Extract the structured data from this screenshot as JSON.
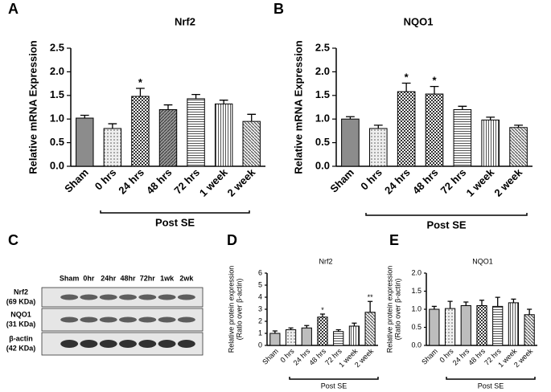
{
  "chart_data": [
    {
      "type": "bar",
      "panel_label": "A",
      "title": "Nrf2",
      "y_label": [
        "Relative mRNA Expression"
      ],
      "categories": [
        "Sham",
        "0 hrs",
        "24 hrs",
        "48 hrs",
        "72 hrs",
        "1 week",
        "2 week"
      ],
      "values": [
        1.02,
        0.8,
        1.48,
        1.2,
        1.43,
        1.32,
        0.95
      ],
      "errors": [
        0.06,
        0.1,
        0.17,
        0.1,
        0.09,
        0.08,
        0.15
      ],
      "significance": [
        null,
        null,
        "*",
        null,
        null,
        null,
        null
      ],
      "group_label": "Post SE",
      "color": "#8c8c8c",
      "patterns": [
        "solid",
        "dots",
        "grid",
        "diag",
        "hlines",
        "vlines",
        "diag2"
      ],
      "ylim": [
        0,
        2.5
      ],
      "yticks": [
        {
          "value": 0,
          "label": "0.0"
        },
        0.5,
        {
          "value": 1,
          "label": "1.0"
        },
        1.5,
        {
          "value": 2,
          "label": "2.0"
        },
        2.5
      ]
    },
    {
      "type": "bar",
      "panel_label": "B",
      "title": "NQO1",
      "y_label": [
        "Relative mRNA Expression"
      ],
      "categories": [
        "Sham",
        "0 hrs",
        "24 hrs",
        "48 hrs",
        "72 hrs",
        "1 week",
        "2 week"
      ],
      "values": [
        1.0,
        0.8,
        1.58,
        1.53,
        1.2,
        0.98,
        0.82
      ],
      "errors": [
        0.05,
        0.07,
        0.18,
        0.16,
        0.07,
        0.06,
        0.05
      ],
      "significance": [
        null,
        null,
        "*",
        "*",
        null,
        null,
        null
      ],
      "group_label": "Post SE",
      "color": "#8c8c8c",
      "patterns": [
        "solid",
        "dots",
        "grid",
        "grid",
        "hlines",
        "vlines",
        "diag2"
      ],
      "ylim": [
        0,
        2.5
      ],
      "yticks": [
        {
          "value": 0,
          "label": "0.0"
        },
        0.5,
        {
          "value": 1,
          "label": "1.0"
        },
        1.5,
        {
          "value": 2,
          "label": "2.0"
        },
        2.5
      ]
    },
    {
      "type": "bar",
      "panel_label": "D",
      "title": "Nrf2",
      "y_label": [
        "Relative protein expression",
        "(Ratio over β-actin)"
      ],
      "categories": [
        "Sham",
        "0 hrs",
        "24 hrs",
        "48 hrs",
        "72 hrs",
        "1 week",
        "2 week"
      ],
      "values": [
        1.0,
        1.3,
        1.45,
        2.35,
        1.15,
        1.6,
        2.75
      ],
      "errors": [
        0.2,
        0.15,
        0.2,
        0.25,
        0.15,
        0.25,
        0.9
      ],
      "significance": [
        null,
        null,
        null,
        "*",
        null,
        null,
        "**"
      ],
      "group_label": "Post SE",
      "color": "#bdbdbd",
      "patterns": [
        "solid",
        "dots",
        "solid",
        "grid",
        "hlines",
        "vlines",
        "diag2"
      ],
      "ylim": [
        0,
        6
      ],
      "yticks": [
        0,
        1,
        2,
        3,
        4,
        5,
        6
      ]
    },
    {
      "type": "bar",
      "panel_label": "E",
      "title": "NQO1",
      "y_label": [
        "Relative protein expression",
        "(Ratio over β-actin)"
      ],
      "categories": [
        "Sham",
        "0 hrs",
        "24 hrs",
        "48 hrs",
        "72 hrs",
        "1 week",
        "2 week"
      ],
      "values": [
        1.0,
        1.02,
        1.1,
        1.1,
        1.08,
        1.18,
        0.85
      ],
      "errors": [
        0.08,
        0.2,
        0.1,
        0.15,
        0.25,
        0.1,
        0.15
      ],
      "significance": [
        null,
        null,
        null,
        null,
        null,
        null,
        null
      ],
      "group_label": "Post SE",
      "color": "#bdbdbd",
      "patterns": [
        "solid",
        "dots",
        "solid",
        "grid",
        "hlines",
        "vlines",
        "diag2"
      ],
      "ylim": [
        0,
        2
      ],
      "yticks": [
        {
          "value": 0,
          "label": "0.0"
        },
        0.5,
        {
          "value": 1,
          "label": "1.0"
        },
        1.5,
        {
          "value": 2,
          "label": "2.0"
        }
      ]
    }
  ],
  "blot": {
    "panel_label": "C",
    "lanes": [
      "Sham",
      "0hr",
      "24hr",
      "48hr",
      "72hr",
      "1wk",
      "2wk"
    ],
    "rows": [
      {
        "name": "Nrf2",
        "size": "(69 KDa)"
      },
      {
        "name": "NQO1",
        "size": "(31 KDa)"
      },
      {
        "name": "β-actin",
        "size": "(42 KDa)"
      }
    ]
  }
}
